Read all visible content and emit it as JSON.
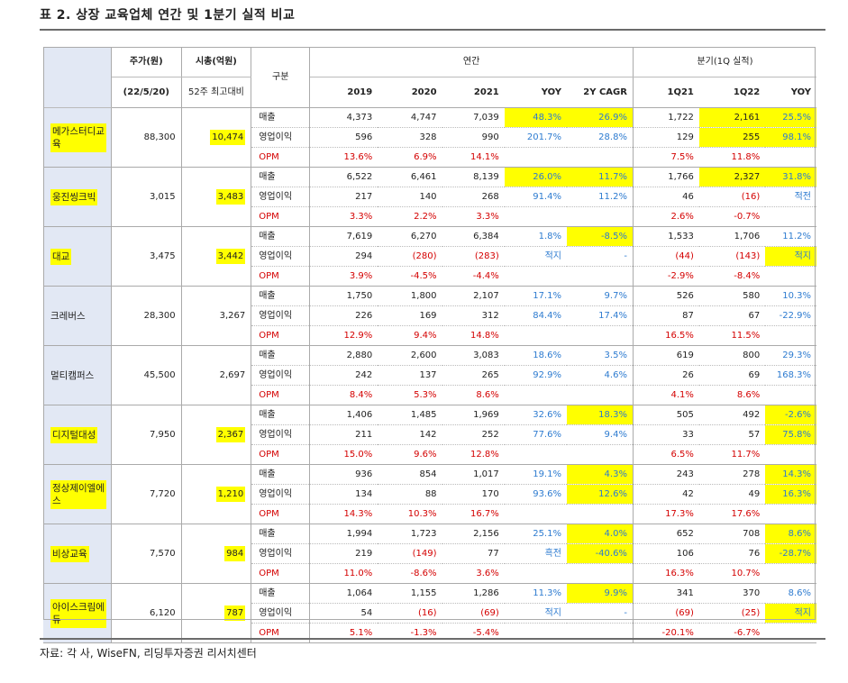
{
  "title": "표 2. 상장 교육업체 연간 및 1분기 실적 비교",
  "source": "자료: 각 사, WiseFN, 리딩투자증권 리서치센터",
  "header": {
    "price": "주가(원)",
    "price_date": "(22/5/20)",
    "cap": "시총(억원)",
    "cap_sub": "52주 최고대비",
    "item": "구분",
    "annual": "연간",
    "quarter": "분기(1Q 실적)",
    "y2019": "2019",
    "y2020": "2020",
    "y2021": "2021",
    "yoy": "YOY",
    "cagr": "2Y CAGR",
    "q1q21": "1Q21",
    "q1q22": "1Q22",
    "qyoy": "YOY"
  },
  "items": {
    "sales": "매출",
    "op": "영업이익",
    "opm": "OPM"
  },
  "companies": [
    {
      "name": "메가스터디교육",
      "price": "88,300",
      "cap": "10,474",
      "sales": [
        "4,373",
        "4,747",
        "7,039",
        "48.3%",
        "26.9%",
        "1,722",
        "2,161",
        "25.5%"
      ],
      "op": [
        "596",
        "328",
        "990",
        "201.7%",
        "28.8%",
        "129",
        "255",
        "98.1%"
      ],
      "opm": [
        "13.6%",
        "6.9%",
        "14.1%",
        "",
        "",
        "7.5%",
        "11.8%",
        ""
      ]
    },
    {
      "name": "웅진씽크빅",
      "price": "3,015",
      "cap": "3,483",
      "sales": [
        "6,522",
        "6,461",
        "8,139",
        "26.0%",
        "11.7%",
        "1,766",
        "2,327",
        "31.8%"
      ],
      "op": [
        "217",
        "140",
        "268",
        "91.4%",
        "11.2%",
        "46",
        "(16)",
        "적전"
      ],
      "opm": [
        "3.3%",
        "2.2%",
        "3.3%",
        "",
        "",
        "2.6%",
        "-0.7%",
        ""
      ]
    },
    {
      "name": "대교",
      "price": "3,475",
      "cap": "3,442",
      "sales": [
        "7,619",
        "6,270",
        "6,384",
        "1.8%",
        "-8.5%",
        "1,533",
        "1,706",
        "11.2%"
      ],
      "op": [
        "294",
        "(280)",
        "(283)",
        "적지",
        "-",
        "(44)",
        "(143)",
        "적지"
      ],
      "opm": [
        "3.9%",
        "-4.5%",
        "-4.4%",
        "",
        "",
        "-2.9%",
        "-8.4%",
        ""
      ]
    },
    {
      "name": "크레버스",
      "price": "28,300",
      "cap": "3,267",
      "sales": [
        "1,750",
        "1,800",
        "2,107",
        "17.1%",
        "9.7%",
        "526",
        "580",
        "10.3%"
      ],
      "op": [
        "226",
        "169",
        "312",
        "84.4%",
        "17.4%",
        "87",
        "67",
        "-22.9%"
      ],
      "opm": [
        "12.9%",
        "9.4%",
        "14.8%",
        "",
        "",
        "16.5%",
        "11.5%",
        ""
      ]
    },
    {
      "name": "멀티캠퍼스",
      "price": "45,500",
      "cap": "2,697",
      "sales": [
        "2,880",
        "2,600",
        "3,083",
        "18.6%",
        "3.5%",
        "619",
        "800",
        "29.3%"
      ],
      "op": [
        "242",
        "137",
        "265",
        "92.9%",
        "4.6%",
        "26",
        "69",
        "168.3%"
      ],
      "opm": [
        "8.4%",
        "5.3%",
        "8.6%",
        "",
        "",
        "4.1%",
        "8.6%",
        ""
      ]
    },
    {
      "name": "디지털대성",
      "price": "7,950",
      "cap": "2,367",
      "sales": [
        "1,406",
        "1,485",
        "1,969",
        "32.6%",
        "18.3%",
        "505",
        "492",
        "-2.6%"
      ],
      "op": [
        "211",
        "142",
        "252",
        "77.6%",
        "9.4%",
        "33",
        "57",
        "75.8%"
      ],
      "opm": [
        "15.0%",
        "9.6%",
        "12.8%",
        "",
        "",
        "6.5%",
        "11.7%",
        ""
      ]
    },
    {
      "name": "정상제이엘에스",
      "price": "7,720",
      "cap": "1,210",
      "sales": [
        "936",
        "854",
        "1,017",
        "19.1%",
        "4.3%",
        "243",
        "278",
        "14.3%"
      ],
      "op": [
        "134",
        "88",
        "170",
        "93.6%",
        "12.6%",
        "42",
        "49",
        "16.3%"
      ],
      "opm": [
        "14.3%",
        "10.3%",
        "16.7%",
        "",
        "",
        "17.3%",
        "17.6%",
        ""
      ]
    },
    {
      "name": "비상교육",
      "price": "7,570",
      "cap": "984",
      "sales": [
        "1,994",
        "1,723",
        "2,156",
        "25.1%",
        "4.0%",
        "652",
        "708",
        "8.6%"
      ],
      "op": [
        "219",
        "(149)",
        "77",
        "흑전",
        "-40.6%",
        "106",
        "76",
        "-28.7%"
      ],
      "opm": [
        "11.0%",
        "-8.6%",
        "3.6%",
        "",
        "",
        "16.3%",
        "10.7%",
        ""
      ]
    },
    {
      "name": "아이스크림에듀",
      "price": "6,120",
      "cap": "787",
      "sales": [
        "1,064",
        "1,155",
        "1,286",
        "11.3%",
        "9.9%",
        "341",
        "370",
        "8.6%"
      ],
      "op": [
        "54",
        "(16)",
        "(69)",
        "적지",
        "-",
        "(69)",
        "(25)",
        "적지"
      ],
      "opm": [
        "5.1%",
        "-1.3%",
        "-5.4%",
        "",
        "",
        "-20.1%",
        "-6.7%",
        ""
      ]
    }
  ]
}
